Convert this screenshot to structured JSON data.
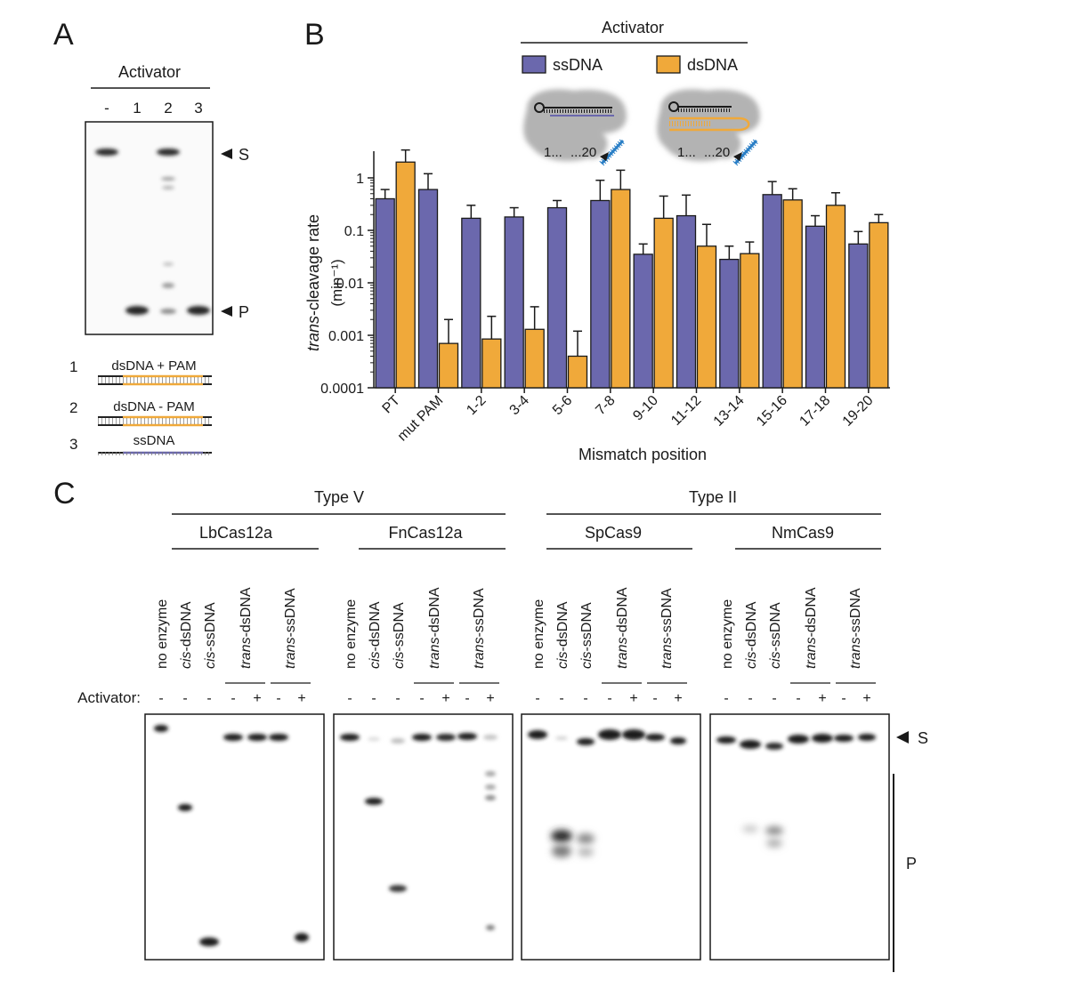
{
  "panelA": {
    "label": "A",
    "header": "Activator",
    "lanes": [
      "-",
      "1",
      "2",
      "3"
    ],
    "marker_s": "S",
    "marker_p": "P",
    "legend": [
      {
        "num": "1",
        "text": "dsDNA + PAM"
      },
      {
        "num": "2",
        "text": "dsDNA - PAM"
      },
      {
        "num": "3",
        "text": "ssDNA"
      }
    ]
  },
  "panelB": {
    "label": "B",
    "cartoon_numbers": [
      "1...",
      "...20"
    ]
  },
  "chart_data": {
    "type": "bar",
    "title": "Activator",
    "xlabel": "Mismatch position",
    "ylabel_italic": "trans",
    "ylabel_rest": "-cleavage rate",
    "ylabel_unit": "(min⁻¹)",
    "yscale": "log",
    "ylim": [
      0.0001,
      5
    ],
    "yticks": [
      1,
      0.1,
      0.01,
      0.001,
      0.0001
    ],
    "ytick_labels": [
      "1",
      "0.1",
      "0.01",
      "0.001",
      "0.0001"
    ],
    "categories": [
      "PT",
      "mut PAM",
      "1-2",
      "3-4",
      "5-6",
      "7-8",
      "9-10",
      "11-12",
      "13-14",
      "15-16",
      "17-18",
      "19-20"
    ],
    "series": [
      {
        "name": "ssDNA",
        "color": "#6b68ad",
        "values": [
          0.4,
          0.6,
          0.17,
          0.18,
          0.27,
          0.37,
          0.035,
          0.19,
          0.028,
          0.48,
          0.12,
          0.055
        ],
        "errors": [
          0.6,
          1.2,
          0.3,
          0.27,
          0.37,
          0.9,
          0.055,
          0.47,
          0.05,
          0.85,
          0.19,
          0.095
        ]
      },
      {
        "name": "dsDNA",
        "color": "#f0a93a",
        "values": [
          2.0,
          0.0007,
          0.00085,
          0.0013,
          0.0004,
          0.6,
          0.17,
          0.05,
          0.036,
          0.38,
          0.3,
          0.14
        ],
        "errors": [
          3.4,
          0.002,
          0.0023,
          0.0035,
          0.0012,
          1.4,
          0.45,
          0.13,
          0.06,
          0.62,
          0.52,
          0.2
        ]
      }
    ]
  },
  "panelC": {
    "label": "C",
    "groups": [
      "Type V",
      "Type II"
    ],
    "enzymes": [
      "LbCas12a",
      "FnCas12a",
      "SpCas9",
      "NmCas9"
    ],
    "lane_labels": [
      "no enzyme",
      "cis-dsDNA",
      "cis-ssDNA",
      "trans-dsDNA",
      "trans-ssDNA"
    ],
    "lane_labels_italic": [
      "",
      "cis",
      "cis",
      "trans",
      "trans"
    ],
    "lane_labels_rest": [
      "no enzyme",
      "-dsDNA",
      "-ssDNA",
      "-dsDNA",
      "-ssDNA"
    ],
    "activator_label": "Activator:",
    "activator_signs": [
      "-",
      "-",
      "-",
      "-",
      "+",
      "-",
      "+"
    ],
    "marker_s": "S",
    "marker_p": "P"
  }
}
